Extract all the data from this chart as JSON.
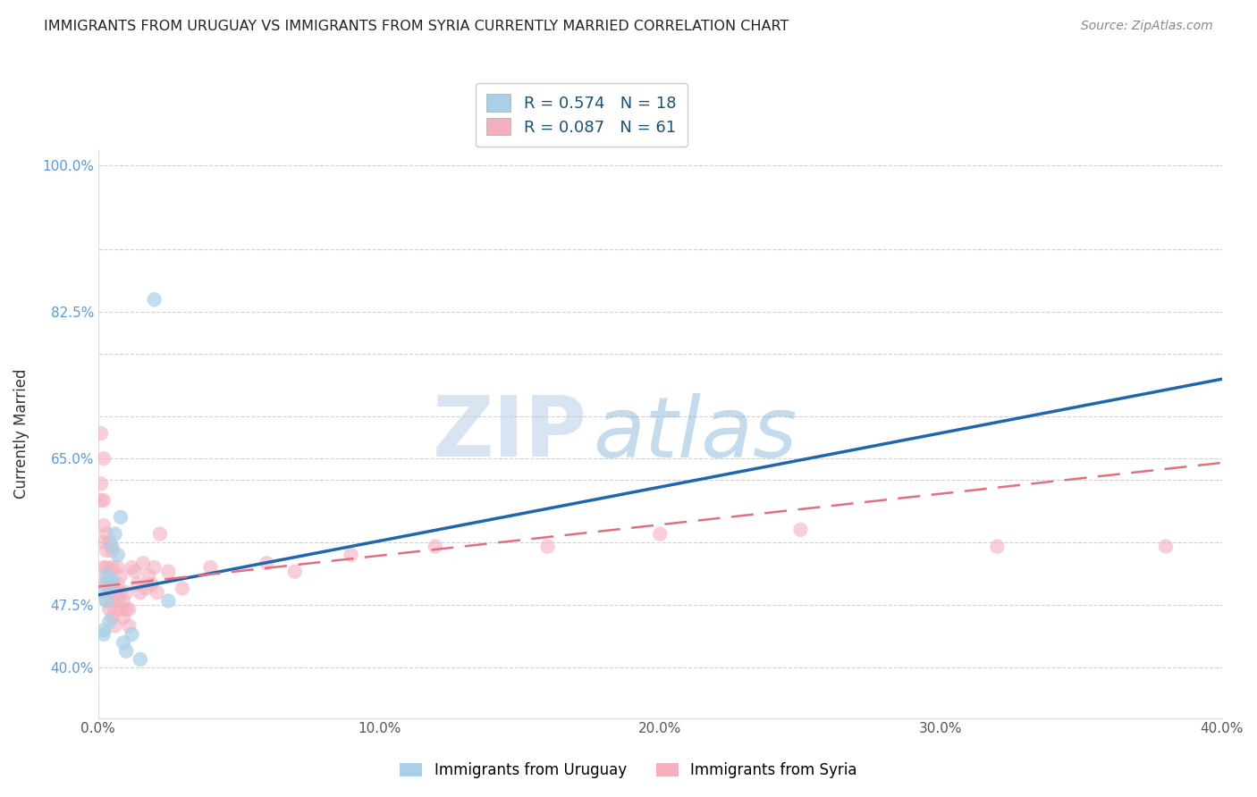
{
  "title": "IMMIGRANTS FROM URUGUAY VS IMMIGRANTS FROM SYRIA CURRENTLY MARRIED CORRELATION CHART",
  "source": "Source: ZipAtlas.com",
  "ylabel": "Currently Married",
  "xlim": [
    0.0,
    0.4
  ],
  "ylim": [
    0.34,
    1.02
  ],
  "xtick_pos": [
    0.0,
    0.1,
    0.2,
    0.3,
    0.4
  ],
  "xticklabels": [
    "0.0%",
    "10.0%",
    "20.0%",
    "30.0%",
    "40.0%"
  ],
  "ytick_pos": [
    0.4,
    0.475,
    0.55,
    0.625,
    0.65,
    0.7,
    0.775,
    0.825,
    0.9,
    1.0
  ],
  "ytick_show": {
    "0.40": "40.0%",
    "0.475": "47.5%",
    "0.65": "65.0%",
    "0.825": "82.5%",
    "1.00": "100.0%"
  },
  "legend_r1": "R = 0.574",
  "legend_n1": "N = 18",
  "legend_r2": "R = 0.087",
  "legend_n2": "N = 61",
  "legend_label1": "Immigrants from Uruguay",
  "legend_label2": "Immigrants from Syria",
  "color_uruguay": "#a8d0e8",
  "color_syria": "#f4b0be",
  "color_line_uruguay": "#2166ac",
  "color_line_syria": "#e07080",
  "watermark_zip": "ZIP",
  "watermark_atlas": "atlas",
  "uruguay_x": [
    0.001,
    0.002,
    0.002,
    0.003,
    0.003,
    0.004,
    0.004,
    0.005,
    0.005,
    0.006,
    0.007,
    0.008,
    0.009,
    0.01,
    0.012,
    0.015,
    0.02,
    0.025
  ],
  "uruguay_y": [
    0.49,
    0.445,
    0.44,
    0.51,
    0.48,
    0.455,
    0.5,
    0.505,
    0.545,
    0.56,
    0.535,
    0.58,
    0.43,
    0.42,
    0.44,
    0.41,
    0.84,
    0.48
  ],
  "syria_x": [
    0.001,
    0.001,
    0.001,
    0.002,
    0.002,
    0.002,
    0.002,
    0.002,
    0.002,
    0.003,
    0.003,
    0.003,
    0.003,
    0.003,
    0.004,
    0.004,
    0.004,
    0.004,
    0.005,
    0.005,
    0.005,
    0.005,
    0.005,
    0.006,
    0.006,
    0.006,
    0.007,
    0.007,
    0.007,
    0.008,
    0.008,
    0.008,
    0.009,
    0.009,
    0.01,
    0.01,
    0.011,
    0.011,
    0.012,
    0.013,
    0.014,
    0.015,
    0.016,
    0.017,
    0.018,
    0.019,
    0.02,
    0.021,
    0.022,
    0.025,
    0.03,
    0.04,
    0.06,
    0.07,
    0.09,
    0.12,
    0.16,
    0.2,
    0.25,
    0.32,
    0.38
  ],
  "syria_y": [
    0.6,
    0.62,
    0.68,
    0.5,
    0.52,
    0.55,
    0.57,
    0.6,
    0.65,
    0.48,
    0.5,
    0.52,
    0.54,
    0.56,
    0.47,
    0.49,
    0.51,
    0.55,
    0.46,
    0.48,
    0.5,
    0.52,
    0.54,
    0.45,
    0.47,
    0.49,
    0.48,
    0.5,
    0.52,
    0.47,
    0.49,
    0.51,
    0.46,
    0.48,
    0.47,
    0.49,
    0.45,
    0.47,
    0.52,
    0.515,
    0.5,
    0.49,
    0.525,
    0.495,
    0.51,
    0.5,
    0.52,
    0.49,
    0.56,
    0.515,
    0.495,
    0.52,
    0.525,
    0.515,
    0.535,
    0.545,
    0.545,
    0.56,
    0.565,
    0.545,
    0.545
  ],
  "line_uruguay_x0": 0.0,
  "line_uruguay_y0": 0.487,
  "line_uruguay_x1": 0.4,
  "line_uruguay_y1": 0.745,
  "line_syria_x0": 0.0,
  "line_syria_y0": 0.497,
  "line_syria_x1": 0.4,
  "line_syria_y1": 0.645
}
